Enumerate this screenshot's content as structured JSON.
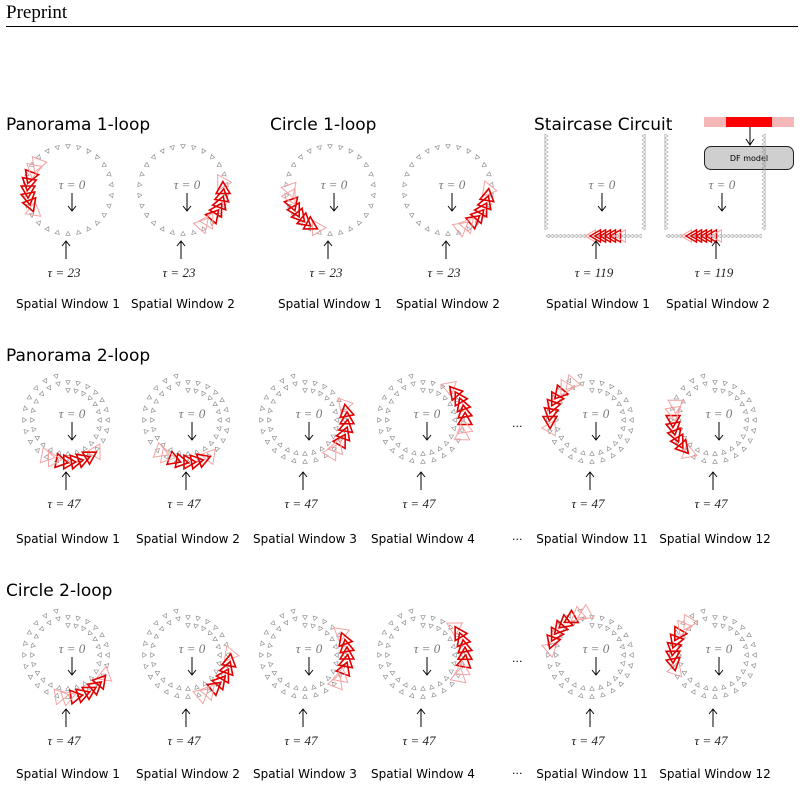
{
  "header": {
    "title": "Preprint"
  },
  "sections": {
    "panorama1": "Panorama 1-loop",
    "circle1": "Circle 1-loop",
    "staircase": "Staircase Circuit",
    "panorama2": "Panorama 2-loop",
    "circle2": "Circle 2-loop"
  },
  "df_model": {
    "label": "DF model",
    "colors": {
      "dim": "#f4b6b6",
      "active": "#ff0000"
    }
  },
  "colors": {
    "active": "#e00000",
    "faded": "#f4a3a3",
    "camera_gray": "#888888"
  },
  "rows": [
    {
      "id": "row1",
      "panels": [
        {
          "id": "p1-w1",
          "shape": "circle",
          "loops": 1,
          "window_angle": 180,
          "tau_start": "τ = 0",
          "tau_end": "τ = 23",
          "caption": "Spatial Window 1"
        },
        {
          "id": "p1-w2",
          "shape": "circle",
          "loops": 1,
          "window_angle": 20,
          "tau_start": "τ = 0",
          "tau_end": "τ = 23",
          "caption": "Spatial Window 2"
        },
        {
          "id": "c1-w1",
          "shape": "circle",
          "loops": 1,
          "window_angle": 140,
          "tau_start": "τ = 0",
          "tau_end": "τ = 23",
          "caption": "Spatial Window 1"
        },
        {
          "id": "c1-w2",
          "shape": "circle",
          "loops": 1,
          "window_angle": 30,
          "tau_start": "τ = 0",
          "tau_end": "τ = 23",
          "caption": "Spatial Window 2"
        },
        {
          "id": "s-w1",
          "shape": "staircase",
          "window": "right",
          "tau_start": "τ = 0",
          "tau_end": "τ = 119",
          "caption": "Spatial Window 1"
        },
        {
          "id": "s-w2",
          "shape": "staircase",
          "window": "left",
          "tau_start": "τ = 0",
          "tau_end": "τ = 119",
          "caption": "Spatial Window 2"
        }
      ]
    },
    {
      "id": "row2",
      "panels": [
        {
          "id": "p2-w1",
          "shape": "spiral",
          "loops": 2,
          "window_angle": 80,
          "tau_start": "τ = 0",
          "tau_end": "τ = 47",
          "caption": "Spatial Window 1"
        },
        {
          "id": "p2-w2",
          "shape": "spiral",
          "loops": 2,
          "window_angle": 90,
          "tau_start": "τ = 0",
          "tau_end": "τ = 47",
          "caption": "Spatial Window 2"
        },
        {
          "id": "p2-w3",
          "shape": "spiral",
          "loops": 2,
          "window_angle": 10,
          "tau_start": "τ = 0",
          "tau_end": "τ = 47",
          "caption": "Spatial Window 3"
        },
        {
          "id": "p2-w4",
          "shape": "spiral",
          "loops": 2,
          "window_angle": -20,
          "tau_start": "τ = 0",
          "tau_end": "τ = 47",
          "caption": "Spatial Window 4"
        },
        {
          "id": "p2-w11",
          "shape": "spiral",
          "loops": 2,
          "window_angle": 200,
          "tau_start": "τ = 0",
          "tau_end": "τ = 47",
          "caption": "Spatial Window 11"
        },
        {
          "id": "p2-w12",
          "shape": "spiral",
          "loops": 2,
          "window_angle": 160,
          "tau_start": "τ = 0",
          "tau_end": "τ = 47",
          "caption": "Spatial Window 12"
        }
      ]
    },
    {
      "id": "row3",
      "panels": [
        {
          "id": "c2-w1",
          "shape": "spiral",
          "loops": 2,
          "window_angle": 60,
          "tau_start": "τ = 0",
          "tau_end": "τ = 47",
          "caption": "Spatial Window 1"
        },
        {
          "id": "c2-w2",
          "shape": "spiral",
          "loops": 2,
          "window_angle": 30,
          "tau_start": "τ = 0",
          "tau_end": "τ = 47",
          "caption": "Spatial Window 2"
        },
        {
          "id": "c2-w3",
          "shape": "spiral",
          "loops": 2,
          "window_angle": 0,
          "tau_start": "τ = 0",
          "tau_end": "τ = 47",
          "caption": "Spatial Window 3"
        },
        {
          "id": "c2-w4",
          "shape": "spiral",
          "loops": 2,
          "window_angle": -10,
          "tau_start": "τ = 0",
          "tau_end": "τ = 47",
          "caption": "Spatial Window 4"
        },
        {
          "id": "c2-w11",
          "shape": "spiral",
          "loops": 2,
          "window_angle": 220,
          "tau_start": "τ = 0",
          "tau_end": "τ = 47",
          "caption": "Spatial Window 11"
        },
        {
          "id": "c2-w12",
          "shape": "spiral",
          "loops": 2,
          "window_angle": 190,
          "tau_start": "τ = 0",
          "tau_end": "τ = 47",
          "caption": "Spatial Window 12"
        }
      ]
    }
  ],
  "ellipsis": "···"
}
